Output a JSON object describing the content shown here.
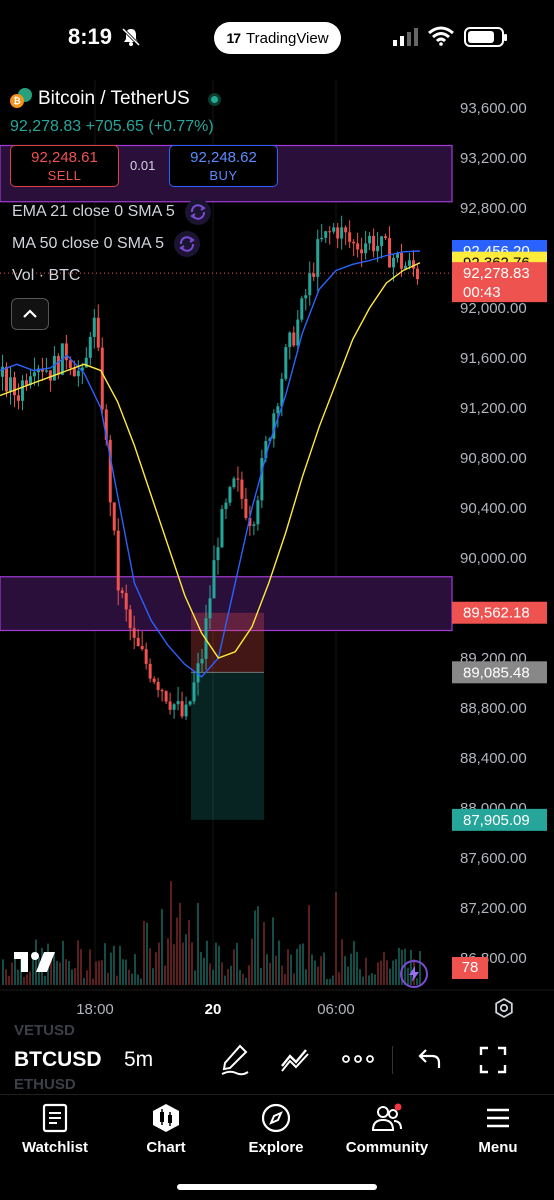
{
  "status_bar": {
    "time": "8:19",
    "app_pill": "TradingView"
  },
  "symbol_header": {
    "title": "Bitcoin / TetherUS",
    "last_price": "92,278.83",
    "change": "+705.65 (+0.77%)",
    "sell_price": "92,248.61",
    "sell_label": "SELL",
    "spread": "0.01",
    "buy_price": "92,248.62",
    "buy_label": "BUY"
  },
  "indicators": [
    {
      "label": "EMA 21 close 0 SMA 5"
    },
    {
      "label": "MA 50 close 0 SMA 5"
    },
    {
      "label": "Vol · BTC"
    }
  ],
  "price_axis": {
    "ticks": [
      "93,600.00",
      "93,200.00",
      "92,800.00",
      "92,000.00",
      "91,600.00",
      "91,200.00",
      "90,800.00",
      "90,400.00",
      "90,000.00",
      "89,200.00",
      "88,800.00",
      "88,400.00",
      "88,000.00",
      "87,600.00",
      "87,200.00",
      "86,800.00"
    ],
    "tags": [
      {
        "text": "92,456.20",
        "bg": "#2962ff",
        "fg": "#ffffff",
        "price": 92456.2
      },
      {
        "text": "92,362.76",
        "bg": "#ffeb3b",
        "fg": "#000000",
        "price": 92362.76
      },
      {
        "text": "92,278.83",
        "sub": "00:43",
        "bg": "#ef5350",
        "fg": "#ffffff",
        "price": 92278.83
      },
      {
        "text": "89,562.18",
        "bg": "#ef5350",
        "fg": "#ffffff",
        "price": 89562.18
      },
      {
        "text": "89,085.48",
        "bg": "#888888",
        "fg": "#ffffff",
        "price": 89085.48
      },
      {
        "text": "87,905.09",
        "bg": "#26a69a",
        "fg": "#ffffff",
        "price": 87905.09
      }
    ],
    "volume_tag": "78"
  },
  "time_axis": {
    "labels": [
      "18:00",
      "20",
      "06:00"
    ]
  },
  "zones": [
    {
      "top": 93300,
      "bottom": 92850,
      "color": "#a23bd6"
    },
    {
      "top": 89850,
      "bottom": 89420,
      "color": "#a23bd6"
    }
  ],
  "position_tool": {
    "entry": 89085.48,
    "stop": 89562.18,
    "target": 87905.09
  },
  "chart_data": {
    "type": "line",
    "title": "Bitcoin / TetherUS",
    "interval": "5m",
    "ylim": [
      86700,
      93800
    ],
    "series": [
      {
        "name": "EMA 21",
        "color": "#2962ff",
        "x": [
          0,
          4,
          8,
          12,
          16,
          20,
          24,
          28,
          32,
          36,
          40,
          44,
          48,
          52,
          56,
          60,
          64,
          68,
          72,
          76,
          80,
          84,
          88,
          92,
          96,
          100
        ],
        "y": [
          91500,
          91550,
          91500,
          91520,
          91620,
          91480,
          91200,
          90500,
          89800,
          89500,
          89300,
          89150,
          89050,
          89200,
          89800,
          90400,
          90900,
          91300,
          91800,
          92150,
          92300,
          92350,
          92380,
          92420,
          92450,
          92456
        ]
      },
      {
        "name": "MA 50",
        "color": "#ffeb3b",
        "x": [
          0,
          4,
          8,
          12,
          16,
          20,
          24,
          28,
          32,
          36,
          40,
          44,
          48,
          52,
          56,
          60,
          64,
          68,
          72,
          76,
          80,
          84,
          88,
          92,
          96,
          100
        ],
        "y": [
          91300,
          91350,
          91400,
          91450,
          91500,
          91550,
          91500,
          91250,
          90900,
          90500,
          90100,
          89700,
          89400,
          89200,
          89250,
          89450,
          89800,
          90200,
          90650,
          91050,
          91400,
          91750,
          92000,
          92200,
          92300,
          92362
        ]
      },
      {
        "name": "Price",
        "color": "#ef5350",
        "x": [
          0,
          4,
          8,
          12,
          16,
          20,
          22,
          24,
          28,
          32,
          36,
          40,
          44,
          48,
          52,
          56,
          60,
          64,
          68,
          72,
          76,
          80,
          84,
          88,
          92,
          96,
          100
        ],
        "y": [
          91450,
          91300,
          91600,
          91500,
          91650,
          91400,
          92000,
          91400,
          89800,
          89300,
          89100,
          88900,
          88700,
          89200,
          90200,
          90600,
          90300,
          91000,
          91600,
          92000,
          92500,
          92650,
          92500,
          92550,
          92450,
          92350,
          92278
        ]
      }
    ]
  },
  "toolbar": {
    "symbol": "BTCUSD",
    "timeframe": "5m",
    "ghost_above": "VETUSD",
    "ghost_below": "ETHUSD"
  },
  "nav": {
    "items": [
      {
        "label": "Watchlist"
      },
      {
        "label": "Chart"
      },
      {
        "label": "Explore"
      },
      {
        "label": "Community"
      },
      {
        "label": "Menu"
      }
    ]
  }
}
